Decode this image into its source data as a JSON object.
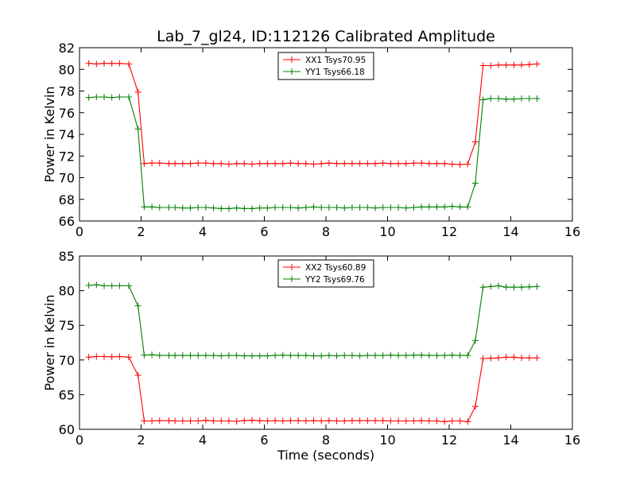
{
  "chart_data": [
    {
      "type": "line",
      "title": "Lab_7_gl24, ID:112126 Calibrated Amplitude",
      "xlabel": "",
      "ylabel": "Power in Kelvin",
      "xlim": [
        0,
        16
      ],
      "ylim": [
        66,
        82
      ],
      "xticks": [
        "0",
        "2",
        "4",
        "6",
        "8",
        "10",
        "12",
        "14",
        "16"
      ],
      "yticks": [
        "66",
        "68",
        "70",
        "72",
        "74",
        "76",
        "78",
        "80",
        "82"
      ],
      "grid": false,
      "legend_position": "top-center",
      "x": [
        0.3,
        0.55,
        0.8,
        1.05,
        1.3,
        1.6,
        1.9,
        2.1,
        2.35,
        2.6,
        2.9,
        3.1,
        3.35,
        3.6,
        3.85,
        4.1,
        4.35,
        4.6,
        4.85,
        5.1,
        5.35,
        5.6,
        5.85,
        6.1,
        6.35,
        6.6,
        6.85,
        7.1,
        7.35,
        7.6,
        7.85,
        8.1,
        8.35,
        8.6,
        8.85,
        9.1,
        9.35,
        9.6,
        9.85,
        10.1,
        10.35,
        10.6,
        10.85,
        11.1,
        11.35,
        11.6,
        11.85,
        12.1,
        12.35,
        12.6,
        12.85,
        13.1,
        13.35,
        13.6,
        13.85,
        14.1,
        14.35,
        14.6,
        14.85
      ],
      "series": [
        {
          "name": "XX1 Tsys70.95",
          "color": "#ff0000",
          "values": [
            80.55,
            80.5,
            80.55,
            80.55,
            80.55,
            80.5,
            77.9,
            71.3,
            71.35,
            71.35,
            71.3,
            71.3,
            71.3,
            71.3,
            71.35,
            71.35,
            71.3,
            71.3,
            71.25,
            71.3,
            71.3,
            71.25,
            71.3,
            71.3,
            71.3,
            71.3,
            71.35,
            71.3,
            71.3,
            71.25,
            71.3,
            71.35,
            71.3,
            71.3,
            71.3,
            71.3,
            71.3,
            71.3,
            71.35,
            71.3,
            71.3,
            71.3,
            71.35,
            71.35,
            71.3,
            71.3,
            71.3,
            71.25,
            71.2,
            71.25,
            73.3,
            80.35,
            80.35,
            80.4,
            80.4,
            80.4,
            80.4,
            80.45,
            80.5
          ]
        },
        {
          "name": "YY1 Tsys66.18",
          "color": "#008000",
          "values": [
            77.4,
            77.45,
            77.45,
            77.4,
            77.45,
            77.45,
            74.5,
            67.3,
            67.3,
            67.25,
            67.25,
            67.25,
            67.2,
            67.2,
            67.25,
            67.25,
            67.2,
            67.15,
            67.15,
            67.2,
            67.15,
            67.15,
            67.2,
            67.2,
            67.25,
            67.25,
            67.25,
            67.2,
            67.25,
            67.3,
            67.25,
            67.25,
            67.25,
            67.2,
            67.25,
            67.25,
            67.25,
            67.2,
            67.25,
            67.25,
            67.25,
            67.2,
            67.25,
            67.3,
            67.3,
            67.3,
            67.3,
            67.35,
            67.3,
            67.3,
            69.5,
            77.2,
            77.3,
            77.3,
            77.25,
            77.25,
            77.3,
            77.3,
            77.3
          ]
        }
      ]
    },
    {
      "type": "line",
      "title": "",
      "xlabel": "Time (seconds)",
      "ylabel": "Power in Kelvin",
      "xlim": [
        0,
        16
      ],
      "ylim": [
        60,
        85
      ],
      "xticks": [
        "0",
        "2",
        "4",
        "6",
        "8",
        "10",
        "12",
        "14",
        "16"
      ],
      "yticks": [
        "60",
        "65",
        "70",
        "75",
        "80",
        "85"
      ],
      "grid": false,
      "legend_position": "top-center",
      "x": [
        0.3,
        0.55,
        0.8,
        1.05,
        1.3,
        1.6,
        1.9,
        2.1,
        2.35,
        2.6,
        2.9,
        3.1,
        3.35,
        3.6,
        3.85,
        4.1,
        4.35,
        4.6,
        4.85,
        5.1,
        5.35,
        5.6,
        5.85,
        6.1,
        6.35,
        6.6,
        6.85,
        7.1,
        7.35,
        7.6,
        7.85,
        8.1,
        8.35,
        8.6,
        8.85,
        9.1,
        9.35,
        9.6,
        9.85,
        10.1,
        10.35,
        10.6,
        10.85,
        11.1,
        11.35,
        11.6,
        11.85,
        12.1,
        12.35,
        12.6,
        12.85,
        13.1,
        13.35,
        13.6,
        13.85,
        14.1,
        14.35,
        14.6,
        14.85
      ],
      "series": [
        {
          "name": "XX2 Tsys60.89",
          "color": "#ff0000",
          "values": [
            70.4,
            70.5,
            70.5,
            70.45,
            70.5,
            70.4,
            67.8,
            61.2,
            61.2,
            61.25,
            61.25,
            61.2,
            61.2,
            61.2,
            61.2,
            61.3,
            61.2,
            61.2,
            61.2,
            61.15,
            61.25,
            61.3,
            61.25,
            61.2,
            61.25,
            61.2,
            61.25,
            61.25,
            61.2,
            61.25,
            61.2,
            61.25,
            61.2,
            61.2,
            61.25,
            61.25,
            61.25,
            61.25,
            61.25,
            61.2,
            61.2,
            61.2,
            61.2,
            61.25,
            61.2,
            61.2,
            61.1,
            61.2,
            61.2,
            61.1,
            63.3,
            70.2,
            70.25,
            70.3,
            70.4,
            70.4,
            70.3,
            70.3,
            70.3
          ]
        },
        {
          "name": "YY2 Tsys69.76",
          "color": "#008000",
          "values": [
            80.75,
            80.85,
            80.7,
            80.7,
            80.7,
            80.7,
            77.8,
            70.7,
            70.75,
            70.65,
            70.65,
            70.65,
            70.65,
            70.65,
            70.65,
            70.65,
            70.65,
            70.6,
            70.65,
            70.65,
            70.6,
            70.6,
            70.6,
            70.6,
            70.65,
            70.7,
            70.65,
            70.65,
            70.65,
            70.6,
            70.6,
            70.65,
            70.6,
            70.65,
            70.65,
            70.6,
            70.65,
            70.65,
            70.65,
            70.7,
            70.65,
            70.65,
            70.7,
            70.7,
            70.65,
            70.65,
            70.65,
            70.7,
            70.65,
            70.65,
            72.8,
            80.5,
            80.6,
            80.7,
            80.5,
            80.5,
            80.5,
            80.55,
            80.6
          ]
        }
      ]
    }
  ]
}
